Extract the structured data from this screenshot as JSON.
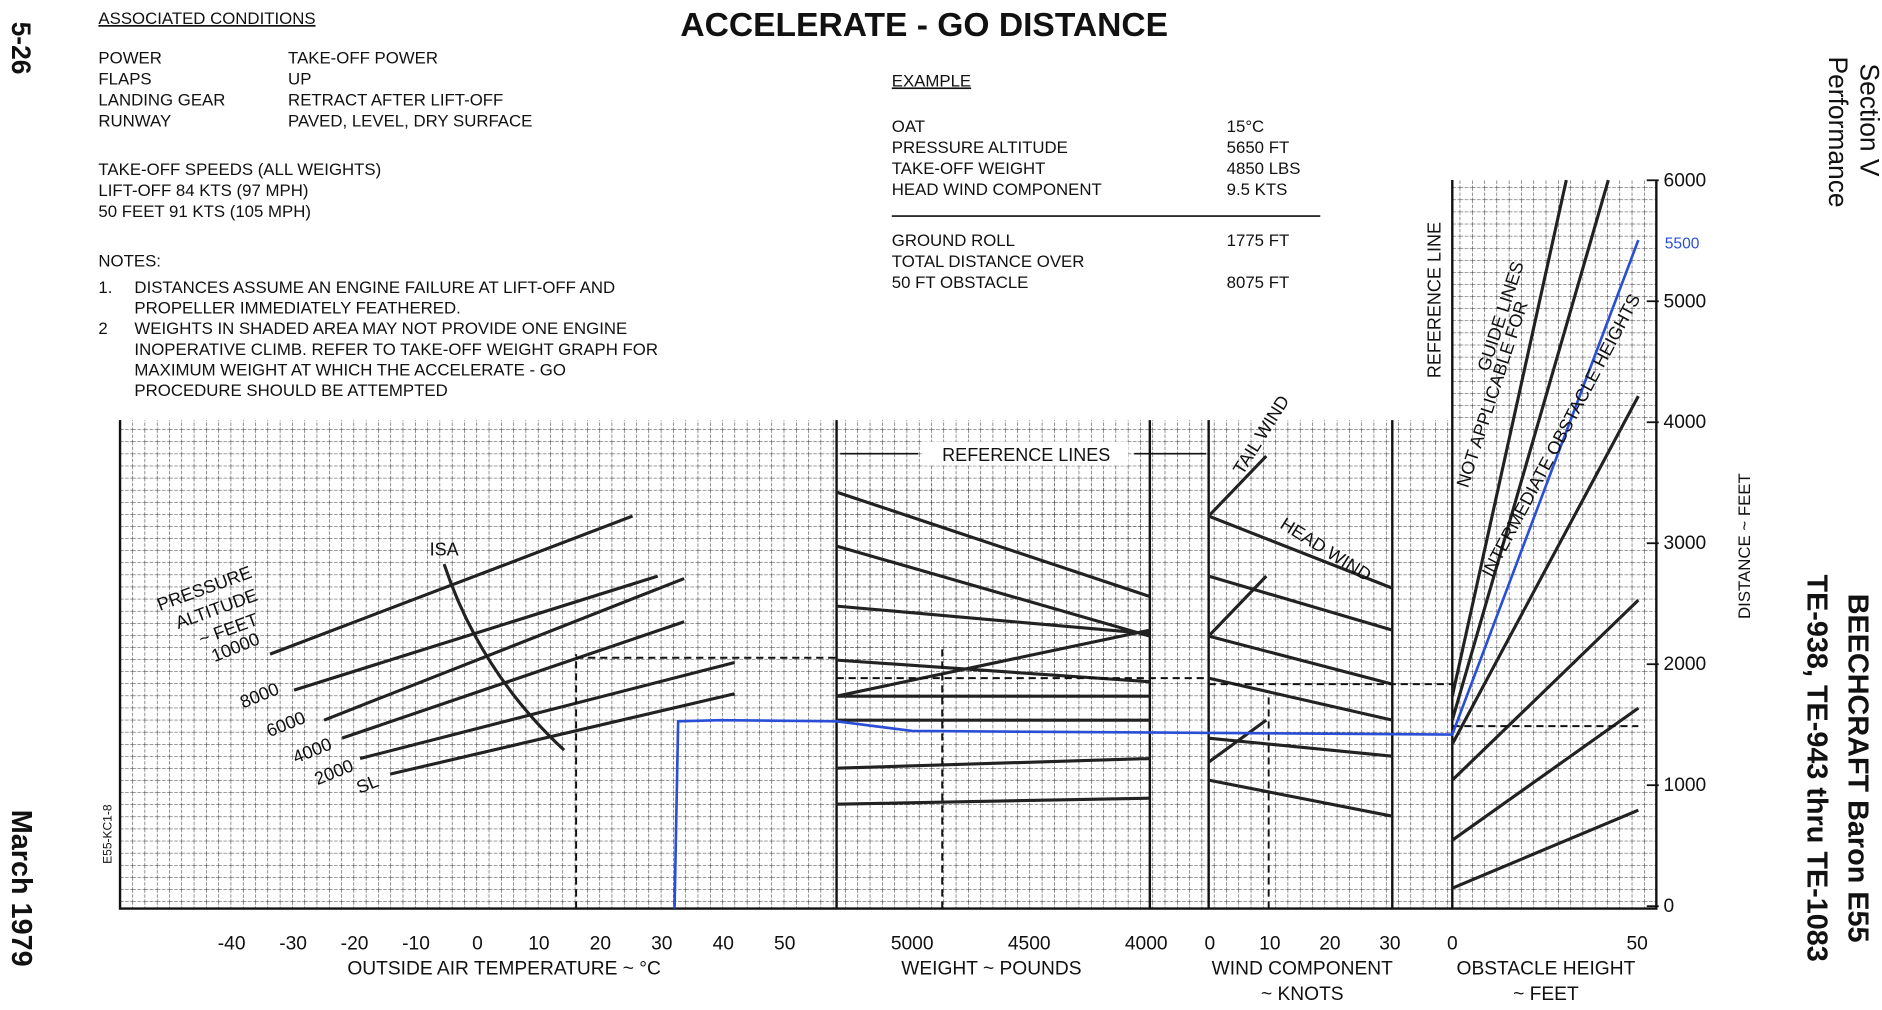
{
  "page_number": "5-26",
  "date": "March 1979",
  "section": "Section V",
  "section_title": "Performance",
  "aircraft": "BEECHCRAFT Baron E55",
  "serials": "TE-938, TE-943 thru TE-1083",
  "title": "ACCELERATE - GO DISTANCE",
  "associated_conditions": {
    "heading": "ASSOCIATED CONDITIONS",
    "rows": [
      [
        "POWER",
        "TAKE-OFF POWER"
      ],
      [
        "FLAPS",
        "UP"
      ],
      [
        "LANDING GEAR",
        "RETRACT AFTER LIFT-OFF"
      ],
      [
        "RUNWAY",
        "PAVED, LEVEL, DRY SURFACE"
      ]
    ]
  },
  "takeoff_speeds": [
    "TAKE-OFF SPEEDS (ALL WEIGHTS)",
    "LIFT-OFF 84 KTS (97 MPH)",
    "50 FEET 91 KTS (105 MPH)"
  ],
  "notes": {
    "heading": "NOTES:",
    "items": [
      {
        "number": "1.",
        "lines": [
          "DISTANCES ASSUME AN ENGINE FAILURE AT LIFT-OFF AND",
          "PROPELLER IMMEDIATELY FEATHERED."
        ]
      },
      {
        "number": "2",
        "lines": [
          "WEIGHTS IN SHADED AREA MAY NOT PROVIDE ONE ENGINE",
          "INOPERATIVE CLIMB. REFER TO TAKE-OFF WEIGHT GRAPH FOR",
          "MAXIMUM WEIGHT AT WHICH THE ACCELERATE - GO",
          "PROCEDURE SHOULD BE ATTEMPTED"
        ]
      }
    ]
  },
  "example": {
    "heading": "EXAMPLE",
    "inputs": [
      [
        "OAT",
        "15°C"
      ],
      [
        "PRESSURE ALTITUDE",
        "5650 FT"
      ],
      [
        "TAKE-OFF WEIGHT",
        "4850 LBS"
      ],
      [
        "HEAD WIND COMPONENT",
        "9.5 KTS"
      ]
    ],
    "results": [
      {
        "lines": [
          "GROUND ROLL"
        ],
        "value": "1775 FT"
      },
      {
        "lines": [
          "TOTAL DISTANCE OVER",
          "50 FT OBSTACLE"
        ],
        "value": "8075 FT"
      }
    ]
  },
  "chart": {
    "oat_ticks": [
      "-40",
      "-30",
      "-20",
      "-10",
      "0",
      "10",
      "20",
      "30",
      "40",
      "50"
    ],
    "oat_label": "OUTSIDE AIR TEMPERATURE ~ °C",
    "weight_ticks": [
      "5000",
      "4500",
      "4000"
    ],
    "weight_label": "WEIGHT ~ POUNDS",
    "wind_ticks": [
      "0",
      "10",
      "20",
      "30"
    ],
    "wind_label": [
      "WIND COMPONENT",
      "~ KNOTS"
    ],
    "obstacle_ticks": [
      "0",
      "50"
    ],
    "obstacle_label": [
      "OBSTACLE HEIGHT",
      "~ FEET"
    ],
    "distance_ticks": [
      "0",
      "1000",
      "2000",
      "3000",
      "4000",
      "5000",
      "6000"
    ],
    "distance_label": "DISTANCE ~ FEET",
    "highlight": "5500",
    "altitude_heading": [
      "PRESSURE",
      "ALTITUDE",
      "~ FEET"
    ],
    "altitudes": [
      "10000",
      "8000",
      "6000",
      "4000",
      "2000",
      "SL"
    ],
    "isa": "ISA",
    "reference_lines": "REFERENCE LINES",
    "tail_wind": "TAIL WIND",
    "head_wind": "HEAD WIND",
    "reference_line": "REFERENCE LINE",
    "guide_note": [
      "GUIDE LINES",
      "NOT APPLICABLE FOR",
      "INTERMEDIATE OBSTACLE HEIGHTS"
    ],
    "code": "E55-KC1-8"
  }
}
